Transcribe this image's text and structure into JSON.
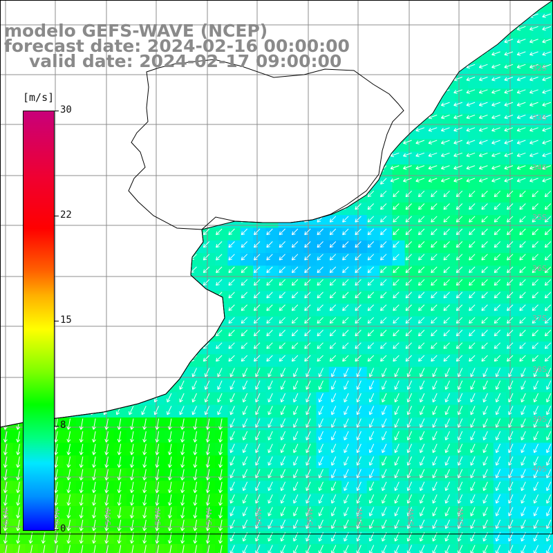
{
  "title": {
    "line1": "modelo GEFS-WAVE (NCEP)",
    "line2": "forecast date: 2024-02-16 00:00:00",
    "line3": "valid date: 2024-02-17 09:00:00"
  },
  "colorbar": {
    "unit": "[m/s]",
    "ticks": [
      "30",
      "22",
      "15",
      "8",
      "0"
    ],
    "tick_values": [
      30,
      22,
      15,
      8,
      0
    ],
    "range": [
      0,
      30
    ],
    "colors": [
      "#0000ff",
      "#0090ff",
      "#00e8ff",
      "#00ff80",
      "#00ff00",
      "#80ff00",
      "#ffff00",
      "#ffb000",
      "#ff6000",
      "#ff0000",
      "#c8007a"
    ]
  },
  "map": {
    "latitude_labels": [
      "32S",
      "33S",
      "34S",
      "35S",
      "36S",
      "37S",
      "38S",
      "39S",
      "40S"
    ],
    "longitude_labels": [
      "61W",
      "60W",
      "59W",
      "58W",
      "57W",
      "56W",
      "55W",
      "54W",
      "53W",
      "52W"
    ],
    "land_color": "#ffffff",
    "grid_color": "#8c8c8c",
    "arrow_color": "#ffffff",
    "dominant_wind_direction": "southwest",
    "fields": {
      "open_ocean_speed_ms": 8,
      "river_plate_speed_ms": 5,
      "southwest_coastal_speed_ms": 11
    }
  }
}
